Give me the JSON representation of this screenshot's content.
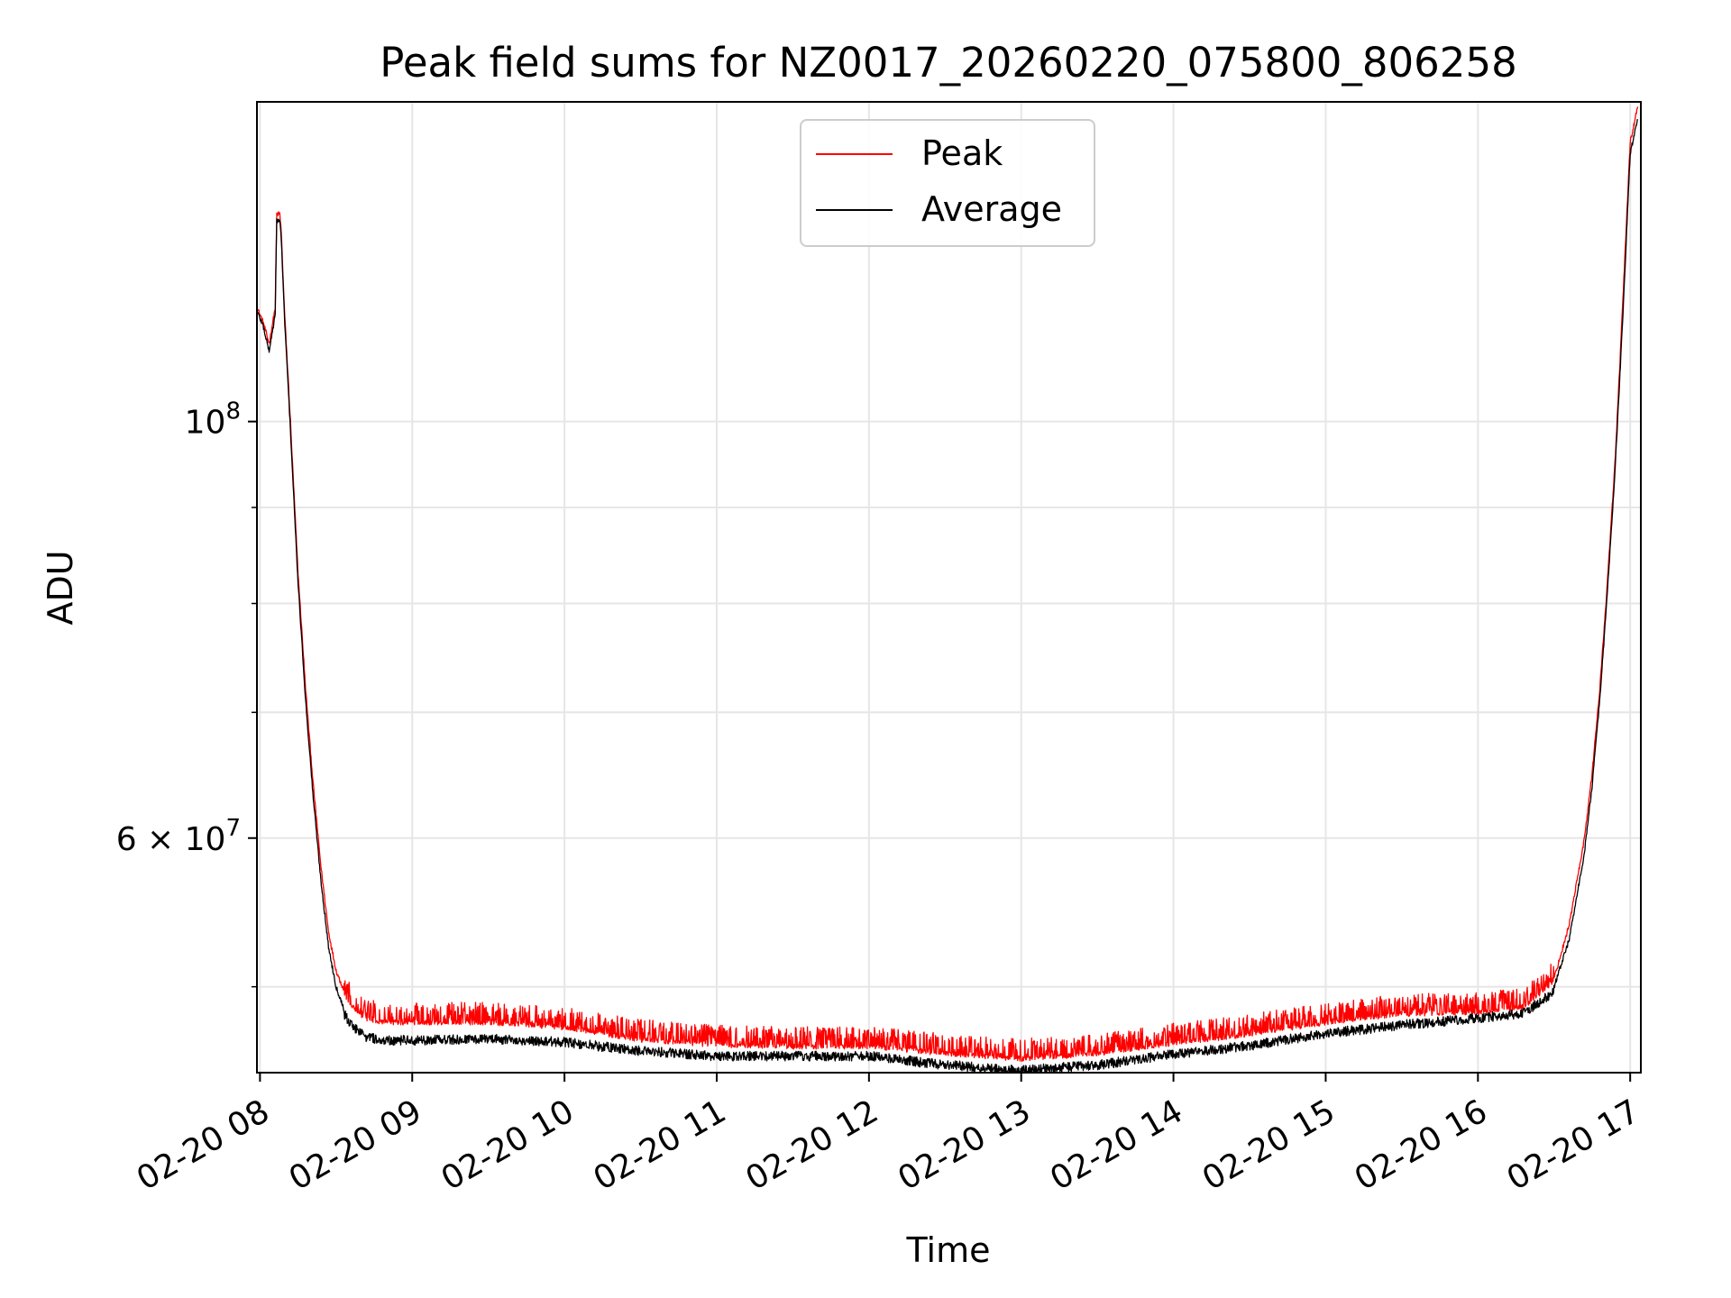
{
  "chart_data": {
    "type": "line",
    "title": "Peak field sums for NZ0017_20260220_075800_806258",
    "xlabel": "Time",
    "ylabel": "ADU",
    "yscale": "log",
    "xlim": [
      7.98,
      17.07
    ],
    "ylim": [
      45000000,
      148000000
    ],
    "grid": true,
    "legend_position": "top-center",
    "xticks": [
      {
        "value": 8,
        "label": "02-20 08"
      },
      {
        "value": 9,
        "label": "02-20 09"
      },
      {
        "value": 10,
        "label": "02-20 10"
      },
      {
        "value": 11,
        "label": "02-20 11"
      },
      {
        "value": 12,
        "label": "02-20 12"
      },
      {
        "value": 13,
        "label": "02-20 13"
      },
      {
        "value": 14,
        "label": "02-20 14"
      },
      {
        "value": 15,
        "label": "02-20 15"
      },
      {
        "value": 16,
        "label": "02-20 16"
      },
      {
        "value": 17,
        "label": "02-20 17"
      }
    ],
    "yticks_major": [
      {
        "value": 60000000,
        "base": "6 × 10",
        "exp": "7"
      },
      {
        "value": 100000000,
        "base": "10",
        "exp": "8"
      }
    ],
    "yticks_minor": [
      50000000,
      70000000,
      80000000,
      90000000
    ],
    "series": [
      {
        "name": "Peak",
        "color": "#ff0000",
        "x": [
          7.98,
          8.02,
          8.06,
          8.1,
          8.11,
          8.13,
          8.14,
          8.16,
          8.2,
          8.25,
          8.3,
          8.35,
          8.4,
          8.45,
          8.5,
          8.55,
          8.6,
          8.65,
          8.7,
          8.8,
          8.9,
          9.0,
          9.5,
          10.0,
          10.5,
          11.0,
          11.5,
          12.0,
          12.5,
          13.0,
          13.5,
          14.0,
          14.5,
          15.0,
          15.5,
          16.0,
          16.3,
          16.5,
          16.6,
          16.7,
          16.75,
          16.8,
          16.85,
          16.9,
          16.95,
          17.0,
          17.05
        ],
        "y": [
          115000000,
          113000000,
          110000000,
          115000000,
          129000000,
          129000000,
          126000000,
          115000000,
          100000000,
          83000000,
          72000000,
          64000000,
          58000000,
          53500000,
          51000000,
          49800000,
          49000000,
          48500000,
          48200000,
          48000000,
          48000000,
          48000000,
          48000000,
          47700000,
          47000000,
          46700000,
          46600000,
          46600000,
          46200000,
          45900000,
          46200000,
          46800000,
          47300000,
          48000000,
          48500000,
          48600000,
          48900000,
          50500000,
          54000000,
          60000000,
          65000000,
          72000000,
          82000000,
          95000000,
          115000000,
          141000000,
          147000000
        ]
      },
      {
        "name": "Average",
        "color": "#000000",
        "x": [
          7.98,
          8.02,
          8.06,
          8.1,
          8.11,
          8.13,
          8.14,
          8.16,
          8.2,
          8.25,
          8.3,
          8.35,
          8.4,
          8.45,
          8.5,
          8.55,
          8.6,
          8.65,
          8.7,
          8.8,
          8.9,
          9.0,
          9.5,
          10.0,
          10.5,
          11.0,
          11.5,
          12.0,
          12.5,
          13.0,
          13.5,
          14.0,
          14.5,
          15.0,
          15.5,
          16.0,
          16.3,
          16.5,
          16.6,
          16.7,
          16.75,
          16.8,
          16.85,
          16.9,
          16.95,
          17.0,
          17.05
        ],
        "y": [
          114500000,
          112500000,
          109000000,
          114000000,
          128000000,
          128000000,
          125000000,
          114000000,
          99000000,
          82000000,
          71000000,
          63000000,
          57000000,
          52500000,
          50000000,
          48700000,
          48000000,
          47600000,
          47300000,
          47100000,
          47100000,
          47100000,
          47200000,
          47000000,
          46500000,
          46200000,
          46200000,
          46200000,
          45700000,
          45400000,
          45700000,
          46300000,
          46800000,
          47500000,
          48000000,
          48400000,
          48700000,
          50000000,
          53000000,
          59000000,
          64000000,
          71000000,
          81000000,
          94000000,
          113000000,
          139000000,
          145000000
        ]
      }
    ]
  }
}
